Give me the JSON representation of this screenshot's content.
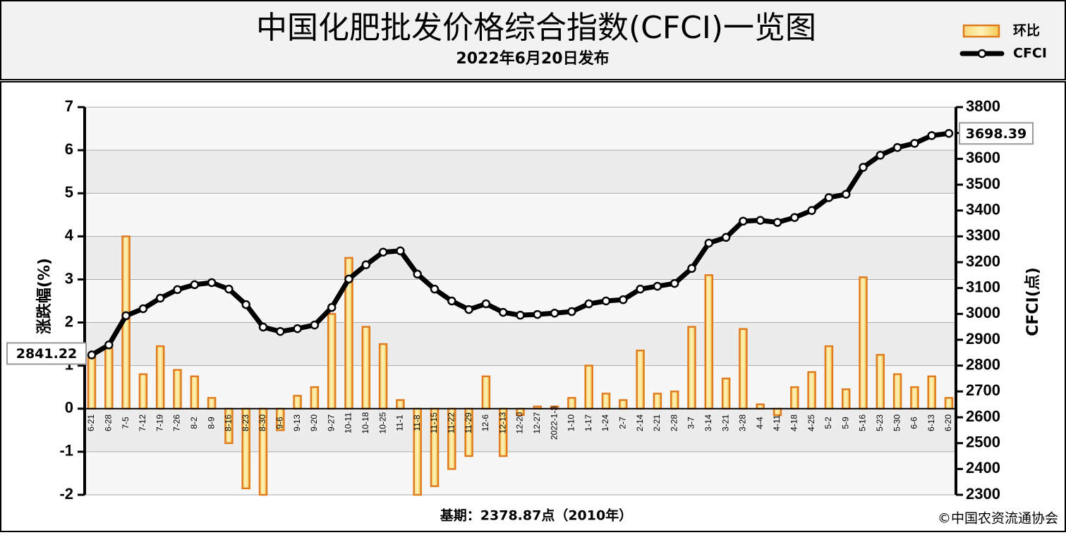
{
  "chart_data": {
    "type": "bar-line",
    "title": "中国化肥批发价格综合指数(CFCI)一览图",
    "subtitle": "2022年6月20日发布",
    "y_label": "涨跌幅(%)",
    "y2_label": "CFCI(点)",
    "footnote": "基期：2378.87点（2010年）",
    "source": "©中国农资流通协会",
    "categories": [
      "6-21",
      "6-28",
      "7-5",
      "7-12",
      "7-19",
      "7-26",
      "8-2",
      "8-9",
      "8-16",
      "8-23",
      "8-30",
      "9-6",
      "9-13",
      "9-20",
      "9-27",
      "10-11",
      "10-18",
      "10-25",
      "11-1",
      "11-8",
      "11-15",
      "11-22",
      "11-29",
      "12-6",
      "12-13",
      "12-20",
      "12-27",
      "2022-1-3",
      "1-10",
      "1-17",
      "1-24",
      "2-7",
      "2-14",
      "2-21",
      "2-28",
      "3-7",
      "3-14",
      "3-21",
      "3-28",
      "4-4",
      "4-11",
      "4-18",
      "4-25",
      "5-2",
      "5-9",
      "5-16",
      "5-23",
      "5-30",
      "6-6",
      "6-13",
      "6-20"
    ],
    "series": [
      {
        "name": "环比",
        "type": "bar",
        "color": "#e07b20",
        "values": [
          1.2,
          1.4,
          4.0,
          0.8,
          1.45,
          0.9,
          0.75,
          0.25,
          -0.8,
          -1.85,
          -2.0,
          -0.5,
          0.3,
          0.5,
          2.2,
          3.5,
          1.9,
          1.5,
          0.2,
          -2.0,
          -1.8,
          -1.4,
          -1.1,
          0.75,
          -1.1,
          -0.15,
          0.05,
          0.05,
          0.25,
          1.0,
          0.35,
          0.2,
          1.35,
          0.35,
          0.4,
          1.9,
          3.1,
          0.7,
          1.85,
          0.1,
          -0.15,
          0.5,
          0.85,
          1.45,
          0.45,
          3.05,
          1.25,
          0.8,
          0.5,
          0.75,
          0.25
        ]
      },
      {
        "name": "CFCI",
        "type": "line",
        "axis": "y2",
        "color": "#000000",
        "values": [
          2841.22,
          2880,
          2993,
          3020,
          3061,
          3094,
          3113,
          3121,
          3096,
          3036,
          2949,
          2932,
          2943,
          2957,
          3025,
          3135,
          3190,
          3239,
          3244,
          3154,
          3096,
          3050,
          3017,
          3039,
          3006,
          2995,
          2998,
          3003,
          3009,
          3039,
          3050,
          3055,
          3096,
          3107,
          3118,
          3176,
          3274,
          3296,
          3359,
          3362,
          3354,
          3373,
          3400,
          3450,
          3463,
          3567,
          3614,
          3644,
          3660,
          3690,
          3698.39
        ]
      }
    ],
    "ylim": [
      -2,
      7
    ],
    "yticks": [
      -2,
      -1,
      0,
      1,
      2,
      3,
      4,
      5,
      6,
      7
    ],
    "y2lim": [
      2300,
      3800
    ],
    "y2ticks": [
      2300,
      2400,
      2500,
      2600,
      2700,
      2800,
      2900,
      3000,
      3100,
      3200,
      3300,
      3400,
      3500,
      3600,
      3700,
      3800
    ],
    "grid": true
  }
}
